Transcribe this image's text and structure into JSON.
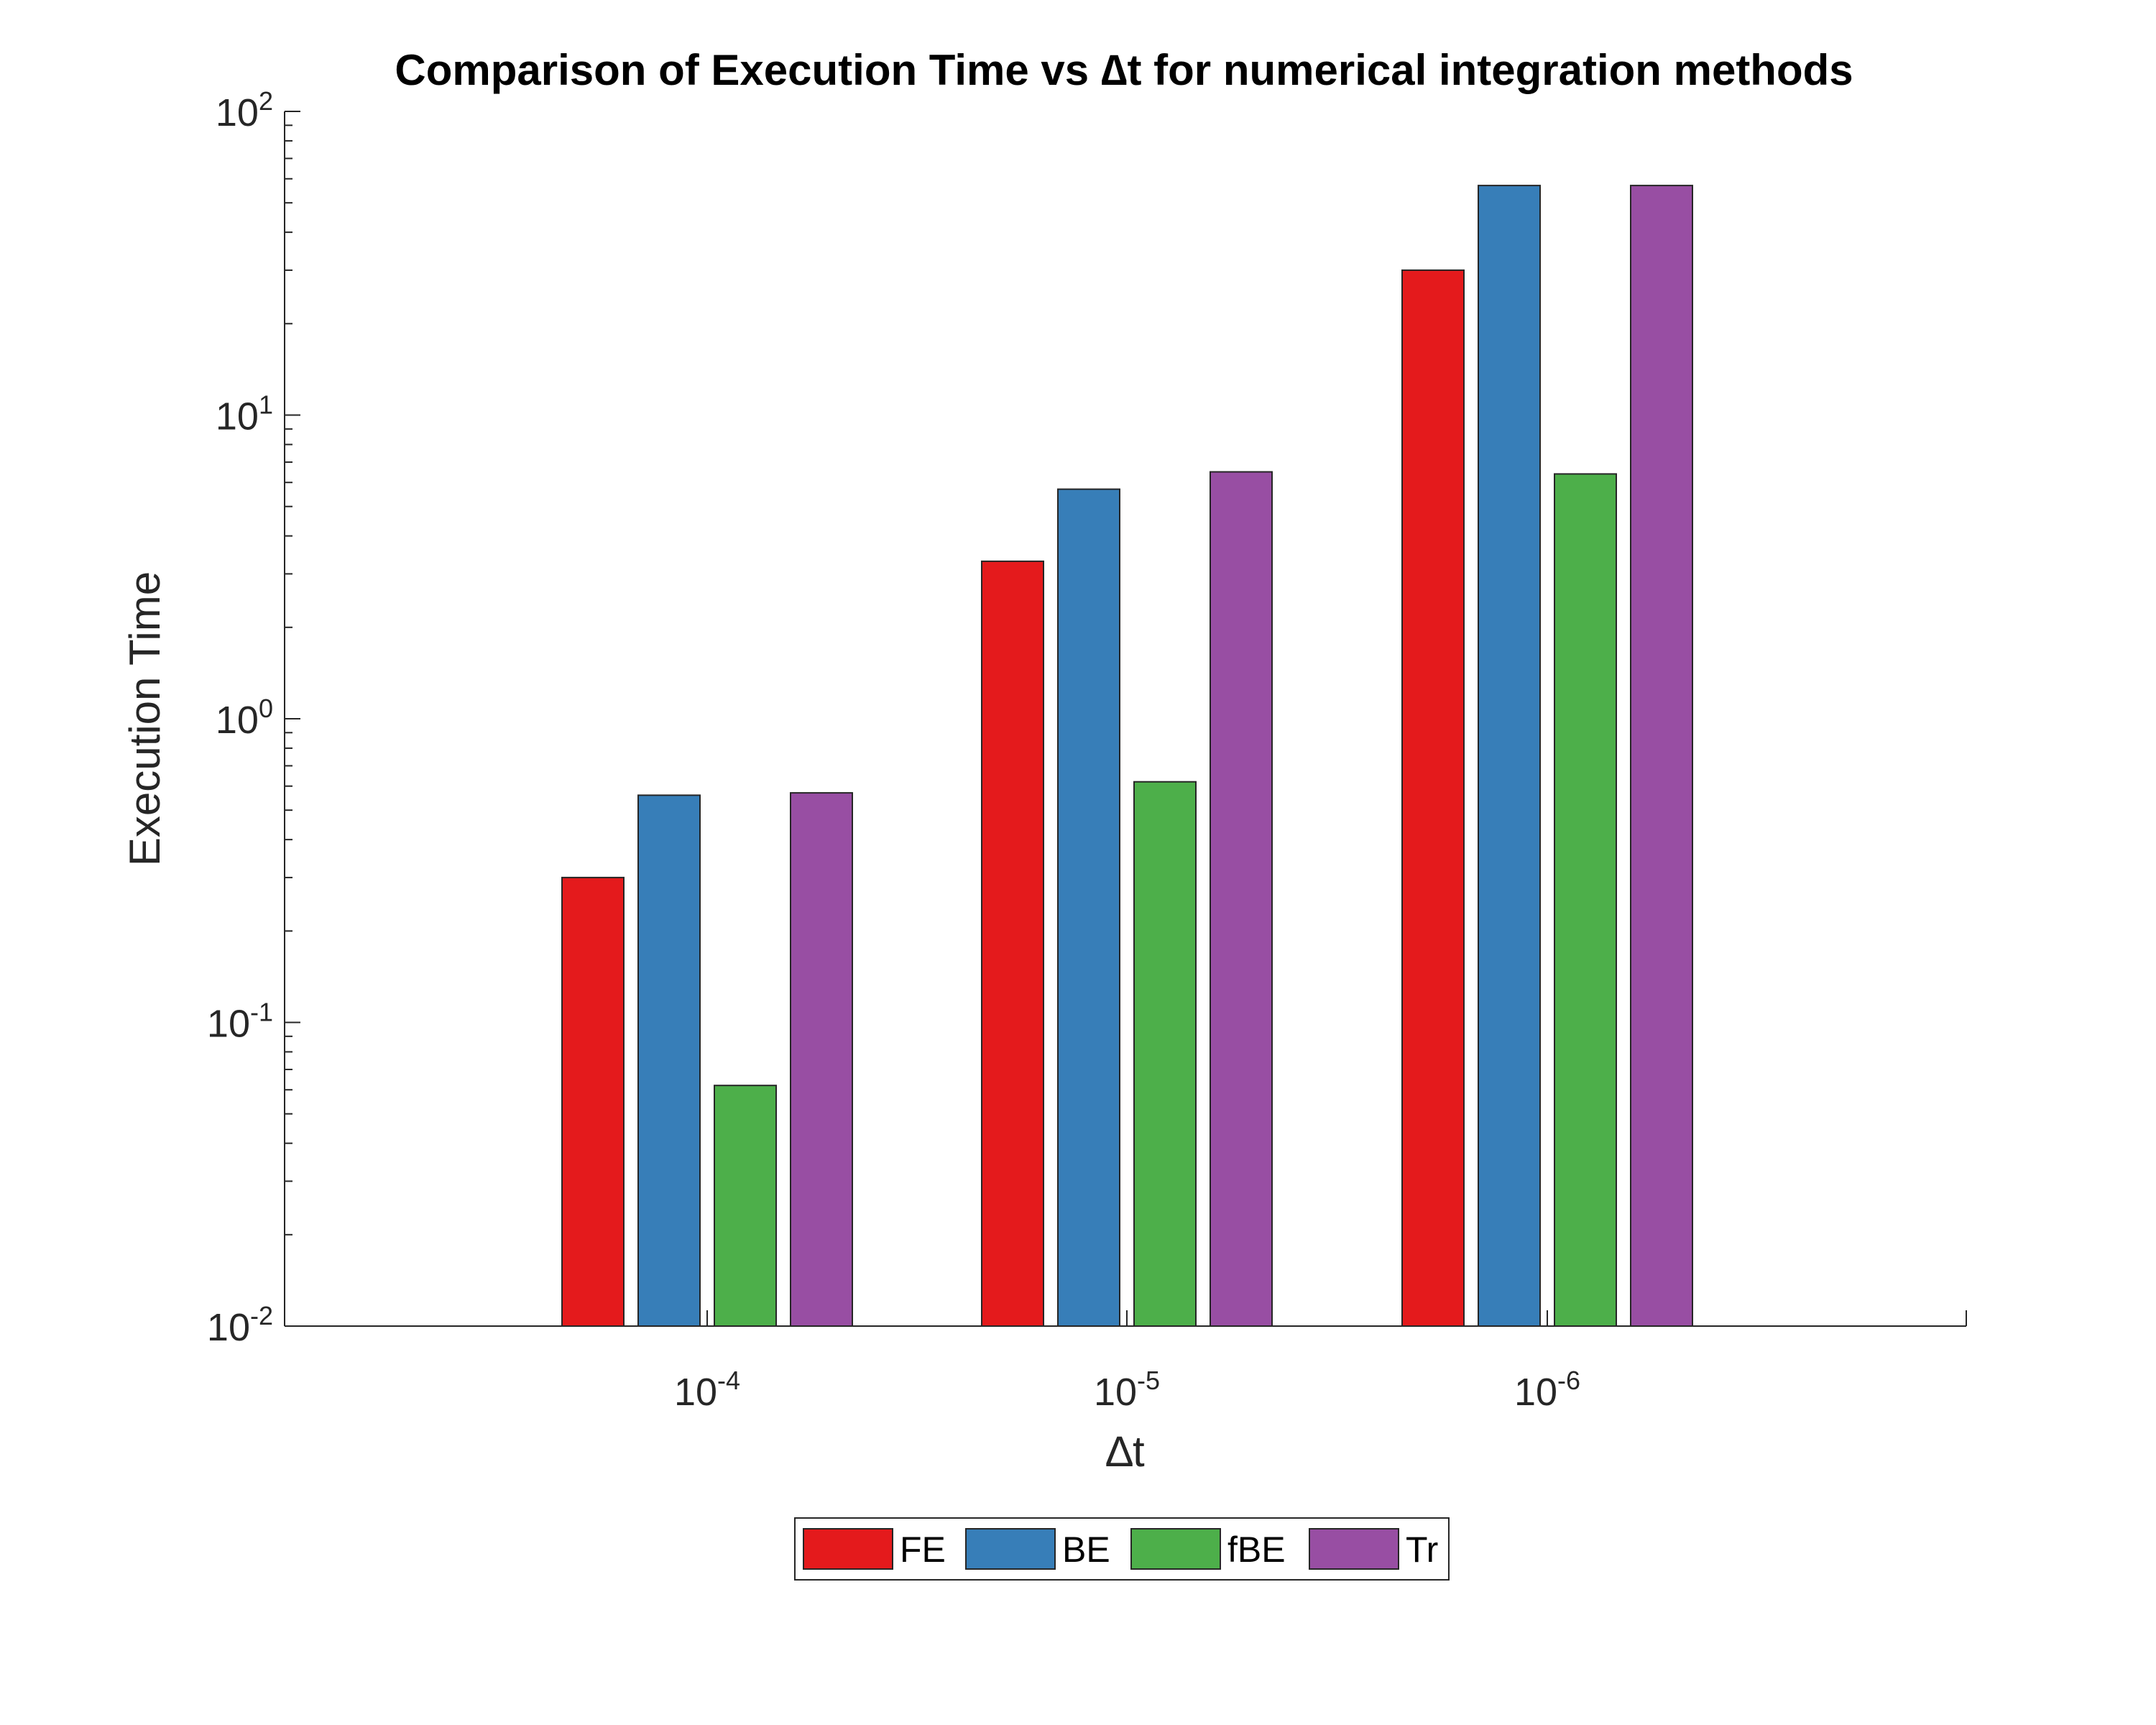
{
  "chart_data": {
    "type": "bar",
    "title": "Comparison of Execution Time vs ∆t for numerical integration methods",
    "xlabel": "∆t",
    "ylabel": "Execution Time",
    "yscale": "log",
    "ylim": [
      0.01,
      100
    ],
    "categories": [
      {
        "base": "10",
        "exp": "-4"
      },
      {
        "base": "10",
        "exp": "-5"
      },
      {
        "base": "10",
        "exp": "-6"
      }
    ],
    "yticks": [
      {
        "base": "10",
        "exp": "-2",
        "value": 0.01
      },
      {
        "base": "10",
        "exp": "-1",
        "value": 0.1
      },
      {
        "base": "10",
        "exp": "0",
        "value": 1
      },
      {
        "base": "10",
        "exp": "1",
        "value": 10
      },
      {
        "base": "10",
        "exp": "2",
        "value": 100
      }
    ],
    "series": [
      {
        "name": "FE",
        "color": "#e41a1c",
        "values": [
          0.3,
          3.3,
          30
        ]
      },
      {
        "name": "BE",
        "color": "#377eb8",
        "values": [
          0.56,
          5.7,
          57
        ]
      },
      {
        "name": "fBE",
        "color": "#4daf4a",
        "values": [
          0.062,
          0.62,
          6.4
        ]
      },
      {
        "name": "Tr",
        "color": "#984ea3",
        "values": [
          0.57,
          6.5,
          57
        ]
      }
    ],
    "legend": {
      "position": "bottom",
      "orientation": "horizontal"
    },
    "grid": false
  }
}
